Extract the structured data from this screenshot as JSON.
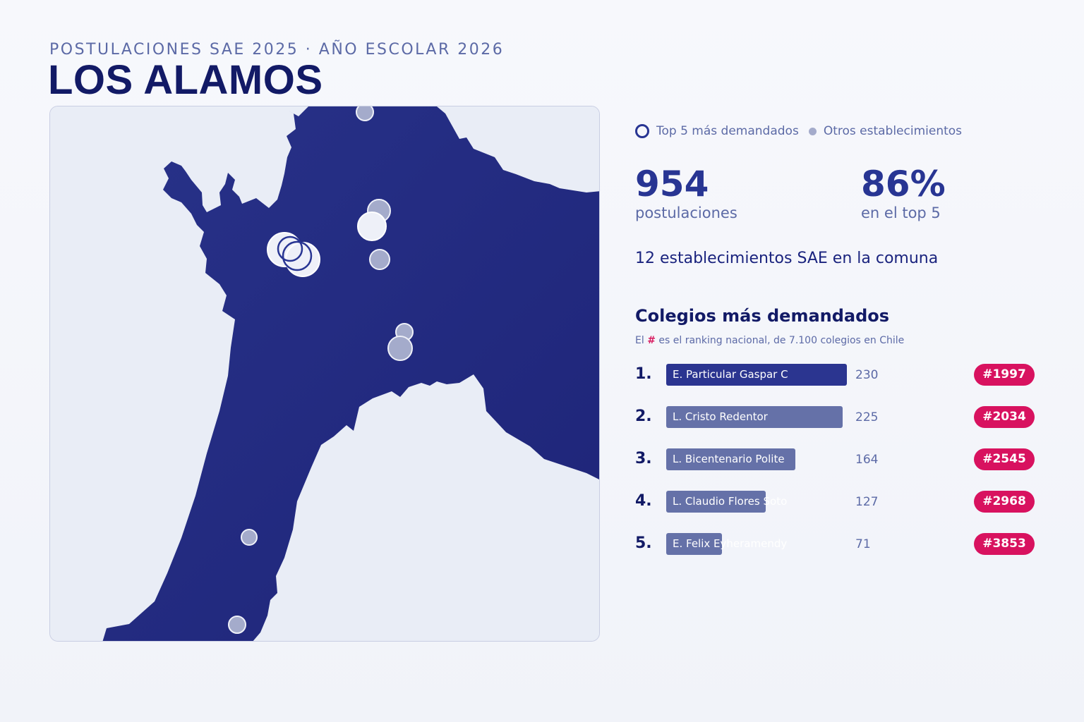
{
  "header": {
    "subtitle": "POSTULACIONES SAE 2025 · AÑO ESCOLAR 2026",
    "title": "LOS ALAMOS"
  },
  "legend": {
    "top5_label": "Top 5 más demandados",
    "others_label": "Otros establecimientos"
  },
  "stats": {
    "applications_value": "954",
    "applications_label": "postulaciones",
    "top5_share_value": "86%",
    "top5_share_label": "en el top 5"
  },
  "schools_count_text": "12 establecimientos SAE en la comuna",
  "ranking": {
    "title": "Colegios más demandados",
    "note_prefix": "El",
    "note_hash": "#",
    "note_suffix": "es el ranking nacional, de 7.100 colegios en Chile",
    "items": [
      {
        "rank": "1.",
        "name": "E. Particular Gaspar C",
        "applications": 230,
        "national_rank": "#1997"
      },
      {
        "rank": "2.",
        "name": "L. Cristo Redentor",
        "applications": 225,
        "national_rank": "#2034"
      },
      {
        "rank": "3.",
        "name": "L. Bicentenario Polite",
        "applications": 164,
        "national_rank": "#2545"
      },
      {
        "rank": "4.",
        "name": "L. Claudio Flores Soto",
        "applications": 127,
        "national_rank": "#2968"
      },
      {
        "rank": "5.",
        "name": "E. Felix Eyheramendy",
        "applications": 71,
        "national_rank": "#3853"
      }
    ]
  },
  "colors": {
    "land": "#252d86",
    "water": "#e9edf6",
    "top5_marker": "#eef0f8",
    "other_marker": "#a4abcb",
    "bar_first": "#2b3590",
    "bar_other": "#6571a8",
    "badge": "#d8125f"
  }
}
